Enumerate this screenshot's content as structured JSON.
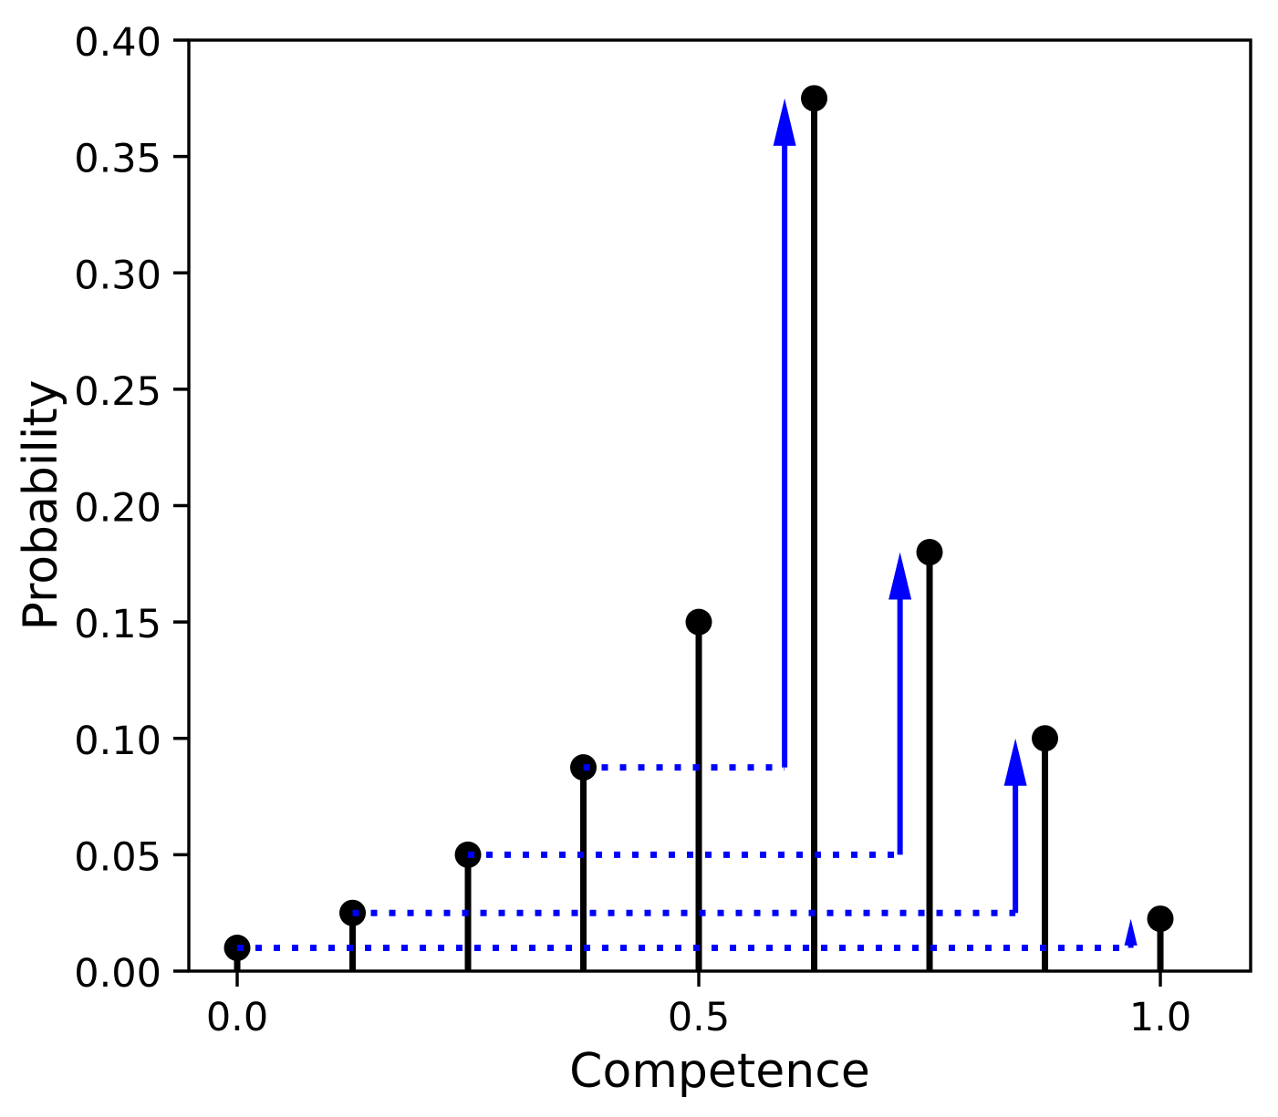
{
  "figure": {
    "background": "#ffffff"
  },
  "chart_data": {
    "type": "stem",
    "title": "",
    "xlabel": "Competence",
    "ylabel": "Probability",
    "x": [
      0.0,
      0.125,
      0.25,
      0.375,
      0.5,
      0.625,
      0.75,
      0.875,
      1.0
    ],
    "probabilities": [
      0.01,
      0.025,
      0.05,
      0.0875,
      0.15,
      0.375,
      0.18,
      0.1,
      0.0225
    ],
    "xlim": [
      -0.0524,
      1.0978
    ],
    "ylim": [
      0.0,
      0.4
    ],
    "xticks": {
      "values": [
        0.0,
        0.5,
        1.0
      ],
      "labels": [
        "0.0",
        "0.5",
        "1.0"
      ]
    },
    "yticks": {
      "values": [
        0.0,
        0.05,
        0.1,
        0.15,
        0.2,
        0.25,
        0.3,
        0.35,
        0.4
      ],
      "labels": [
        "0.00",
        "0.05",
        "0.10",
        "0.15",
        "0.20",
        "0.25",
        "0.30",
        "0.35",
        "0.40"
      ]
    },
    "grid": false,
    "legend": false,
    "stem_color": "#000000",
    "arrow_color": "#0000ff",
    "arrows": [
      {
        "from_x": 0.375,
        "from_y": 0.0875,
        "to_x": 0.593,
        "tip_y": 0.375
      },
      {
        "from_x": 0.25,
        "from_y": 0.05,
        "to_x": 0.718,
        "tip_y": 0.18
      },
      {
        "from_x": 0.125,
        "from_y": 0.025,
        "to_x": 0.843,
        "tip_y": 0.1
      },
      {
        "from_x": 0.0,
        "from_y": 0.01,
        "to_x": 0.968,
        "tip_y": 0.0225
      }
    ]
  }
}
